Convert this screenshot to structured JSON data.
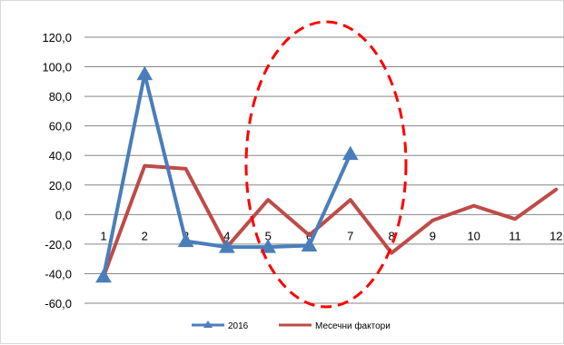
{
  "chart_data": {
    "type": "line",
    "categories": [
      "1",
      "2",
      "3",
      "4",
      "5",
      "6",
      "7",
      "8",
      "9",
      "10",
      "11",
      "12"
    ],
    "ylim": [
      -60,
      120
    ],
    "y_ticks": [
      120,
      100,
      80,
      60,
      40,
      20,
      0,
      -20,
      -40,
      -60
    ],
    "y_tick_labels": [
      "120,0",
      "100,0",
      "80,0",
      "60,0",
      "40,0",
      "20,0",
      "0,0",
      "-20,0",
      "-40,0",
      "-60,0"
    ],
    "grid": "horizontal",
    "legend_position": "bottom",
    "series": [
      {
        "name": "2016",
        "color": "#4a7ebb",
        "marker": "triangle",
        "values": [
          -42,
          95,
          -18,
          -22,
          -22,
          -21,
          41,
          null,
          null,
          null,
          null,
          null
        ]
      },
      {
        "name": "Месечни фактори",
        "color": "#be4b48",
        "marker": "none",
        "values": [
          -42,
          33,
          31,
          -22,
          10,
          -14,
          10,
          -26,
          -4,
          6,
          -3,
          17
        ]
      }
    ],
    "annotation": {
      "shape": "dashed-ellipse",
      "color": "#ff0000",
      "around_categories": [
        "5",
        "6",
        "7",
        "8"
      ]
    }
  }
}
